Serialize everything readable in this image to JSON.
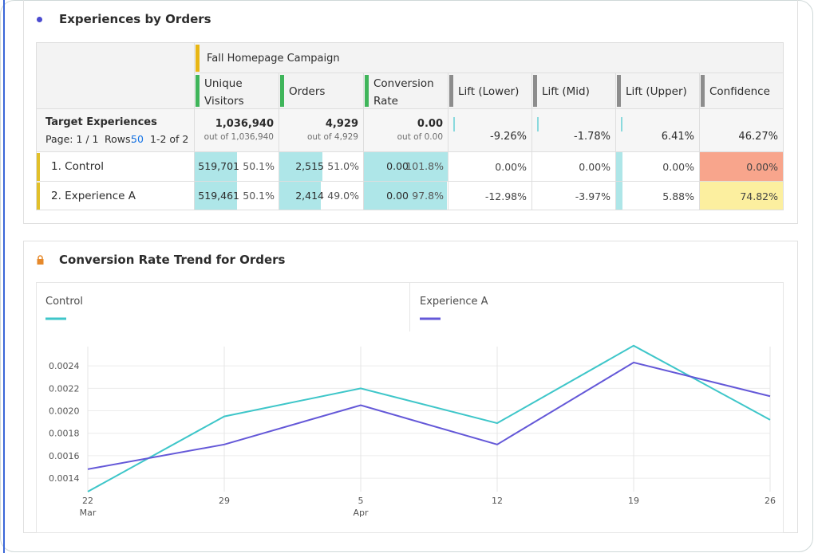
{
  "table_panel": {
    "title": "Experiences by Orders",
    "campaign": "Fall Homepage Campaign",
    "columns": [
      "Unique Visitors",
      "Orders",
      "Conversion Rate",
      "Lift (Lower)",
      "Lift (Mid)",
      "Lift (Upper)",
      "Confidence"
    ],
    "dimension": "Target Experiences",
    "pagination": {
      "page": "Page: 1 / 1",
      "rows_label": "Rows:",
      "rows": "50",
      "range": "1-2 of 2"
    },
    "totals": [
      {
        "value": "1,036,940",
        "sub": "out of 1,036,940"
      },
      {
        "value": "4,929",
        "sub": "out of 4,929"
      },
      {
        "value": "0.00",
        "sub": "out of 0.00"
      },
      {
        "value": "-9.26%"
      },
      {
        "value": "-1.78%"
      },
      {
        "value": "6.41%"
      },
      {
        "value": "46.27%"
      }
    ],
    "rows": [
      {
        "label": "1. Control",
        "confidence_color": "#f8a58c",
        "cells": [
          {
            "value": "519,701",
            "share": {
              "value": 50.1,
              "label": "50.1%"
            }
          },
          {
            "value": "2,515",
            "share": {
              "value": 51.0,
              "label": "51.0%"
            }
          },
          {
            "value": "0.00",
            "share": {
              "value": 101.8,
              "label": "101.8%"
            }
          },
          {
            "value": "0.00%"
          },
          {
            "value": "0.00%"
          },
          {
            "value": "0.00%"
          },
          {
            "value": "0.00%"
          }
        ]
      },
      {
        "label": "2. Experience A",
        "confidence_color": "#fcef9f",
        "cells": [
          {
            "value": "519,461",
            "share": {
              "value": 50.1,
              "label": "50.1%"
            }
          },
          {
            "value": "2,414",
            "share": {
              "value": 49.0,
              "label": "49.0%"
            }
          },
          {
            "value": "0.00",
            "share": {
              "value": 97.8,
              "label": "97.8%"
            }
          },
          {
            "value": "-12.98%"
          },
          {
            "value": "-3.97%"
          },
          {
            "value": "5.88%"
          },
          {
            "value": "74.82%"
          }
        ]
      }
    ]
  },
  "chart_data": {
    "type": "line",
    "title": "Conversion Rate Trend for Orders",
    "categories": [
      "22 Mar",
      "29",
      "5 Apr",
      "12",
      "19",
      "26"
    ],
    "series": [
      {
        "name": "Control",
        "color": "#3ec6c9",
        "values": [
          0.00128,
          0.00195,
          0.0022,
          0.00189,
          0.00258,
          0.00192
        ]
      },
      {
        "name": "Experience A",
        "color": "#6458d8",
        "values": [
          0.00148,
          0.0017,
          0.00205,
          0.0017,
          0.00243,
          0.00213
        ]
      }
    ],
    "ylim": [
      0.00128,
      0.0026
    ],
    "yticks": [
      0.0014,
      0.0016,
      0.0018,
      {
        "value": 0.002,
        "label": "0.0020"
      },
      0.0022,
      0.0024
    ],
    "grid": true
  }
}
